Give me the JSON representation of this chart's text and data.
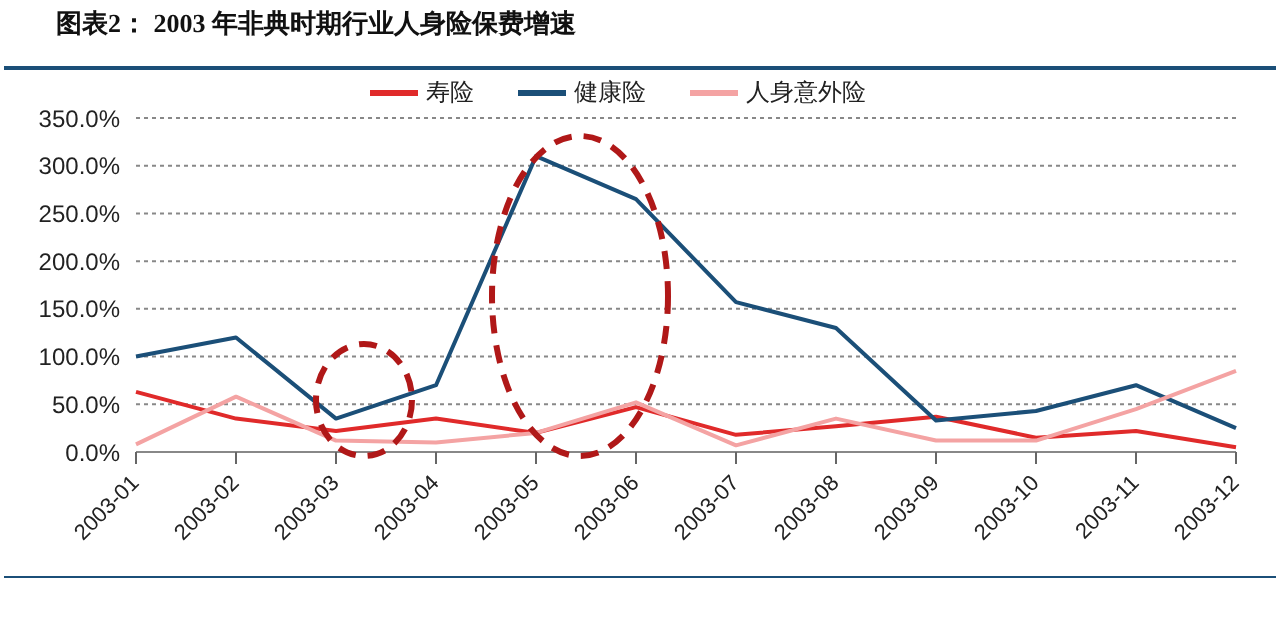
{
  "chart_data": {
    "type": "line",
    "title": "图表2：  2003 年非典时期行业人身险保费增速",
    "categories": [
      "2003-01",
      "2003-02",
      "2003-03",
      "2003-04",
      "2003-05",
      "2003-06",
      "2003-07",
      "2003-08",
      "2003-09",
      "2003-10",
      "2003-11",
      "2003-12"
    ],
    "series": [
      {
        "name": "寿险",
        "color": "#e02a2a",
        "values": [
          63,
          35,
          22,
          35,
          20,
          47,
          18,
          27,
          37,
          15,
          22,
          5
        ]
      },
      {
        "name": "健康险",
        "color": "#1b4f78",
        "values": [
          100,
          120,
          35,
          70,
          310,
          265,
          157,
          130,
          33,
          43,
          70,
          25
        ]
      },
      {
        "name": "人身意外险",
        "color": "#f4a3a3",
        "values": [
          8,
          58,
          12,
          10,
          20,
          52,
          7,
          35,
          12,
          12,
          45,
          85
        ]
      }
    ],
    "ylim": [
      0,
      350
    ],
    "yticks": [
      {
        "value": 0,
        "label": "0.0%"
      },
      {
        "value": 50,
        "label": "50.0%"
      },
      {
        "value": 100,
        "label": "100.0%"
      },
      {
        "value": 150,
        "label": "150.0%"
      },
      {
        "value": 200,
        "label": "200.0%"
      },
      {
        "value": 250,
        "label": "250.0%"
      },
      {
        "value": 300,
        "label": "300.0%"
      },
      {
        "value": 350,
        "label": "350.0%"
      }
    ],
    "grid": "y",
    "legend": "top",
    "marker": "none",
    "line_style": "solid"
  }
}
